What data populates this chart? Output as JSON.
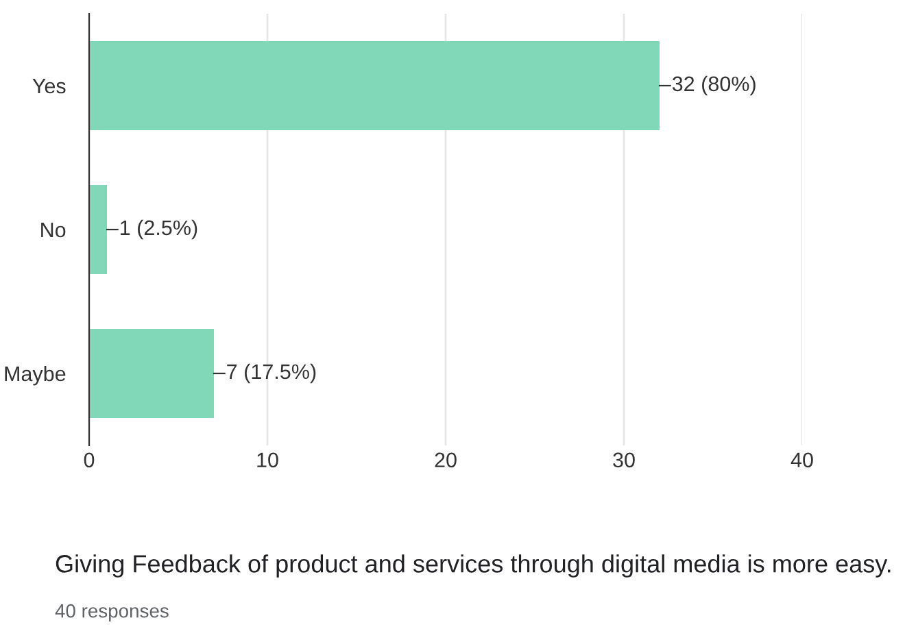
{
  "chart_data": {
    "type": "bar",
    "orientation": "horizontal",
    "title": "Giving Feedback of product and services through digital media is more easy.",
    "annotations": [
      "40 responses"
    ],
    "categories": [
      "Yes",
      "No",
      "Maybe"
    ],
    "values": [
      32,
      1,
      7
    ],
    "value_labels": [
      "32 (80%)",
      "1 (2.5%)",
      "7 (17.5%)"
    ],
    "color": "#80d8b8",
    "xlim": [
      0,
      40
    ],
    "xticks": [
      0,
      10,
      20,
      30,
      40
    ],
    "grid": "x"
  }
}
